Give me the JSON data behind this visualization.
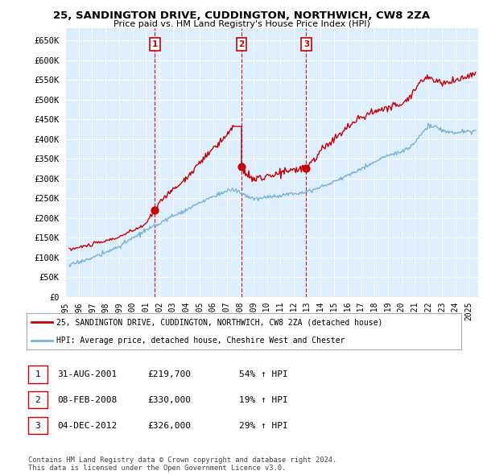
{
  "title1": "25, SANDINGTON DRIVE, CUDDINGTON, NORTHWICH, CW8 2ZA",
  "title2": "Price paid vs. HM Land Registry's House Price Index (HPI)",
  "ytick_values": [
    0,
    50000,
    100000,
    150000,
    200000,
    250000,
    300000,
    350000,
    400000,
    450000,
    500000,
    550000,
    600000,
    650000
  ],
  "ylabel_ticks": [
    "£0",
    "£50K",
    "£100K",
    "£150K",
    "£200K",
    "£250K",
    "£300K",
    "£350K",
    "£400K",
    "£450K",
    "£500K",
    "£550K",
    "£600K",
    "£650K"
  ],
  "ylim": [
    0,
    680000
  ],
  "xlim_start": 1995.3,
  "xlim_end": 2025.7,
  "xtick_years": [
    1995,
    1996,
    1997,
    1998,
    1999,
    2000,
    2001,
    2002,
    2003,
    2004,
    2005,
    2006,
    2007,
    2008,
    2009,
    2010,
    2011,
    2012,
    2013,
    2014,
    2015,
    2016,
    2017,
    2018,
    2019,
    2020,
    2021,
    2022,
    2023,
    2024,
    2025
  ],
  "sale1_x": 2001.667,
  "sale1_y": 219700,
  "sale2_x": 2008.1,
  "sale2_y": 330000,
  "sale3_x": 2012.92,
  "sale3_y": 326000,
  "vline_color": "#cc0000",
  "red_line_color": "#cc0000",
  "blue_line_color": "#7ab4d4",
  "chart_bg_color": "#ddeeff",
  "bg_color": "#ffffff",
  "grid_color": "#ffffff",
  "legend1": "25, SANDINGTON DRIVE, CUDDINGTON, NORTHWICH, CW8 2ZA (detached house)",
  "legend2": "HPI: Average price, detached house, Cheshire West and Chester",
  "table_rows": [
    [
      "1",
      "31-AUG-2001",
      "£219,700",
      "54% ↑ HPI"
    ],
    [
      "2",
      "08-FEB-2008",
      "£330,000",
      "19% ↑ HPI"
    ],
    [
      "3",
      "04-DEC-2012",
      "£326,000",
      "29% ↑ HPI"
    ]
  ],
  "footer": "Contains HM Land Registry data © Crown copyright and database right 2024.\nThis data is licensed under the Open Government Licence v3.0."
}
